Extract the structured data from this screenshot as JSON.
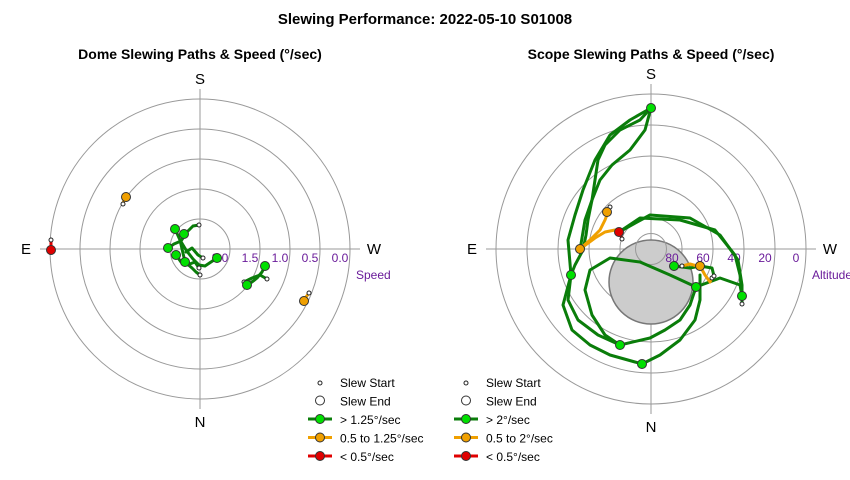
{
  "main_title": "Slewing Performance: 2022-05-10 S01008",
  "colors": {
    "fast": "#00e000",
    "fast_path": "#0a7d0a",
    "medium": "#f0a000",
    "slow": "#e00000",
    "grid": "#999999",
    "axis_text": "#6a1b9a",
    "zenith_fill": "#cccccc"
  },
  "chart_data": [
    {
      "type": "polar-scatter",
      "title": "Dome Slewing Paths & Speed (°/sec)",
      "directions": {
        "top": "S",
        "bottom": "N",
        "left": "E",
        "right": "W"
      },
      "radial_label": "Speed",
      "radial_ticks": [
        "2.0",
        "1.5",
        "1.0",
        "0.5",
        "0.0"
      ],
      "radial_tick_values": [
        2.0,
        1.5,
        1.0,
        0.5,
        0.0
      ],
      "radial_range": [
        2.5,
        0.0
      ],
      "legend": [
        "Slew Start",
        "Slew End",
        "> 1.25°/sec",
        "0.5 to 1.25°/sec",
        "< 0.5°/sec"
      ],
      "segments": [
        {
          "cat": "fast",
          "pts": [
            [
              175,
              229
            ],
            [
              180,
              240
            ],
            [
              186,
              250
            ],
            [
              193,
              259
            ],
            [
              199,
              265
            ],
            [
              205,
              266
            ],
            [
              211,
              262
            ],
            [
              217,
              258
            ]
          ]
        },
        {
          "cat": "fast",
          "pts": [
            [
              168,
              248
            ],
            [
              174,
              244
            ],
            [
              181,
              241
            ],
            [
              187,
              232
            ],
            [
              193,
              226
            ],
            [
              199,
              225
            ]
          ]
        },
        {
          "cat": "fast",
          "pts": [
            [
              180,
              240
            ],
            [
              185,
              262
            ],
            [
              192,
              268
            ],
            [
              196,
              272
            ],
            [
              200,
              275
            ]
          ]
        },
        {
          "cat": "fast",
          "pts": [
            [
              186,
              252
            ],
            [
              192,
              248
            ],
            [
              198,
              255
            ],
            [
              203,
              258
            ]
          ]
        },
        {
          "cat": "fast",
          "pts": [
            [
              176,
              255
            ],
            [
              181,
              262
            ],
            [
              187,
              265
            ],
            [
              195,
              262
            ],
            [
              199,
              268
            ]
          ]
        },
        {
          "cat": "fast",
          "pts": [
            [
              247,
              285
            ],
            [
              252,
              282
            ],
            [
              257,
              278
            ],
            [
              262,
              272
            ],
            [
              265,
              266
            ]
          ]
        },
        {
          "cat": "fast",
          "pts": [
            [
              244,
              282
            ],
            [
              252,
              278
            ],
            [
              260,
              275
            ],
            [
              267,
              279
            ]
          ]
        },
        {
          "cat": "medium",
          "pts": [
            [
              123,
              204
            ],
            [
              124,
              200
            ],
            [
              126,
              197
            ]
          ]
        },
        {
          "cat": "medium",
          "pts": [
            [
              304,
              301
            ],
            [
              306,
              297
            ],
            [
              309,
              293
            ]
          ]
        },
        {
          "cat": "slow",
          "pts": [
            [
              51,
              240
            ],
            [
              51,
              245
            ],
            [
              51,
              250
            ]
          ]
        }
      ],
      "start_markers": [
        [
          199,
          225
        ],
        [
          200,
          275
        ],
        [
          203,
          258
        ],
        [
          199,
          268
        ],
        [
          267,
          279
        ],
        [
          244,
          282
        ],
        [
          123,
          204
        ],
        [
          309,
          293
        ],
        [
          51,
          240
        ]
      ],
      "end_markers": [
        {
          "cat": "fast",
          "pt": [
            175,
            229
          ]
        },
        {
          "cat": "fast",
          "pt": [
            185,
            262
          ]
        },
        {
          "cat": "fast",
          "pt": [
            168,
            248
          ]
        },
        {
          "cat": "fast",
          "pt": [
            217,
            258
          ]
        },
        {
          "cat": "fast",
          "pt": [
            176,
            255
          ]
        },
        {
          "cat": "fast",
          "pt": [
            247,
            285
          ]
        },
        {
          "cat": "fast",
          "pt": [
            265,
            266
          ]
        },
        {
          "cat": "fast",
          "pt": [
            184,
            234
          ]
        },
        {
          "cat": "medium",
          "pt": [
            126,
            197
          ]
        },
        {
          "cat": "medium",
          "pt": [
            304,
            301
          ]
        },
        {
          "cat": "slow",
          "pt": [
            51,
            250
          ]
        }
      ]
    },
    {
      "type": "polar-scatter",
      "title": "Scope Slewing Paths & Speed (°/sec)",
      "directions": {
        "top": "S",
        "bottom": "N",
        "left": "E",
        "right": "W"
      },
      "radial_label": "Altitude",
      "radial_ticks": [
        "80",
        "60",
        "40",
        "20",
        "0"
      ],
      "radial_tick_values": [
        80,
        60,
        40,
        20,
        0
      ],
      "radial_range": [
        90,
        0
      ],
      "zenith_exclusion_altitude": [
        64,
        80
      ],
      "legend": [
        "Slew Start",
        "Slew End",
        "> 2°/sec",
        "0.5 to 2°/sec",
        "< 0.5°/sec"
      ],
      "segments": [
        {
          "cat": "fast",
          "pts": [
            [
              651,
              108
            ],
            [
              640,
              120
            ],
            [
              620,
              130
            ],
            [
              605,
              145
            ],
            [
              598,
              160
            ],
            [
              595,
              180
            ],
            [
              592,
              200
            ],
            [
              588,
              220
            ],
            [
              586,
              235
            ],
            [
              583,
              250
            ],
            [
              575,
              265
            ],
            [
              571,
              275
            ]
          ]
        },
        {
          "cat": "fast",
          "pts": [
            [
              651,
              108
            ],
            [
              645,
              130
            ],
            [
              630,
              150
            ],
            [
              612,
              165
            ],
            [
              600,
              180
            ],
            [
              592,
              200
            ],
            [
              585,
              220
            ],
            [
              580,
              250
            ]
          ]
        },
        {
          "cat": "fast",
          "pts": [
            [
              651,
              108
            ],
            [
              630,
              120
            ],
            [
              610,
              135
            ],
            [
              595,
              160
            ],
            [
              583,
              190
            ],
            [
              575,
              215
            ],
            [
              568,
              240
            ],
            [
              571,
              275
            ]
          ]
        },
        {
          "cat": "fast",
          "pts": [
            [
              619,
              232
            ],
            [
              640,
              218
            ],
            [
              680,
              220
            ],
            [
              715,
              230
            ],
            [
              735,
              255
            ],
            [
              740,
              275
            ],
            [
              742,
              296
            ]
          ]
        },
        {
          "cat": "fast",
          "pts": [
            [
              619,
              232
            ],
            [
              650,
              215
            ],
            [
              690,
              218
            ],
            [
              720,
              235
            ],
            [
              738,
              260
            ],
            [
              742,
              285
            ],
            [
              742,
              304
            ]
          ]
        },
        {
          "cat": "fast",
          "pts": [
            [
              571,
              275
            ],
            [
              568,
              300
            ],
            [
              578,
              320
            ],
            [
              598,
              335
            ],
            [
              620,
              345
            ]
          ]
        },
        {
          "cat": "fast",
          "pts": [
            [
              571,
              275
            ],
            [
              563,
              305
            ],
            [
              572,
              330
            ],
            [
              590,
              345
            ],
            [
              610,
              355
            ],
            [
              635,
              362
            ],
            [
              642,
              364
            ]
          ]
        },
        {
          "cat": "fast",
          "pts": [
            [
              696,
              287
            ],
            [
              670,
              275
            ],
            [
              640,
              262
            ],
            [
              610,
              258
            ],
            [
              590,
              270
            ],
            [
              585,
              290
            ],
            [
              592,
              315
            ],
            [
              605,
              335
            ],
            [
              620,
              345
            ]
          ]
        },
        {
          "cat": "fast",
          "pts": [
            [
              674,
              266
            ],
            [
              690,
              268
            ],
            [
              700,
              266
            ],
            [
              712,
              268
            ],
            [
              714,
              276
            ]
          ]
        },
        {
          "cat": "fast",
          "pts": [
            [
              696,
              287
            ],
            [
              720,
              278
            ],
            [
              740,
              285
            ],
            [
              742,
              296
            ]
          ]
        },
        {
          "cat": "fast",
          "pts": [
            [
              642,
              364
            ],
            [
              660,
              355
            ],
            [
              680,
              340
            ],
            [
              695,
              320
            ],
            [
              700,
              300
            ],
            [
              700,
              275
            ]
          ]
        },
        {
          "cat": "fast",
          "pts": [
            [
              696,
              287
            ],
            [
              690,
              305
            ],
            [
              680,
              320
            ],
            [
              665,
              330
            ],
            [
              650,
              338
            ],
            [
              620,
              345
            ]
          ]
        },
        {
          "cat": "medium",
          "pts": [
            [
              580,
              249
            ],
            [
              590,
              240
            ],
            [
              600,
              230
            ],
            [
              605,
              220
            ],
            [
              610,
              207
            ]
          ]
        },
        {
          "cat": "medium",
          "pts": [
            [
              580,
              249
            ],
            [
              595,
              238
            ],
            [
              605,
              232
            ],
            [
              615,
              230
            ]
          ]
        },
        {
          "cat": "medium",
          "pts": [
            [
              700,
              266
            ],
            [
              705,
              275
            ],
            [
              710,
              282
            ],
            [
              712,
              278
            ]
          ]
        },
        {
          "cat": "medium",
          "pts": [
            [
              682,
              266
            ],
            [
              690,
              264
            ],
            [
              697,
              266
            ]
          ]
        },
        {
          "cat": "slow",
          "pts": [
            [
              619,
              232
            ],
            [
              621,
              236
            ],
            [
              622,
              239
            ]
          ]
        }
      ],
      "start_markers": [
        [
          610,
          207
        ],
        [
          712,
          278
        ],
        [
          714,
          276
        ],
        [
          742,
          304
        ],
        [
          622,
          239
        ],
        [
          682,
          266
        ],
        [
          651,
          108
        ]
      ],
      "end_markers": [
        {
          "cat": "fast",
          "pt": [
            651,
            108
          ]
        },
        {
          "cat": "fast",
          "pt": [
            571,
            275
          ]
        },
        {
          "cat": "fast",
          "pt": [
            742,
            296
          ]
        },
        {
          "cat": "fast",
          "pt": [
            620,
            345
          ]
        },
        {
          "cat": "fast",
          "pt": [
            642,
            364
          ]
        },
        {
          "cat": "fast",
          "pt": [
            674,
            266
          ]
        },
        {
          "cat": "fast",
          "pt": [
            696,
            287
          ]
        },
        {
          "cat": "medium",
          "pt": [
            580,
            249
          ]
        },
        {
          "cat": "medium",
          "pt": [
            607,
            212
          ]
        },
        {
          "cat": "medium",
          "pt": [
            700,
            266
          ]
        },
        {
          "cat": "slow",
          "pt": [
            619,
            232
          ]
        }
      ]
    }
  ]
}
